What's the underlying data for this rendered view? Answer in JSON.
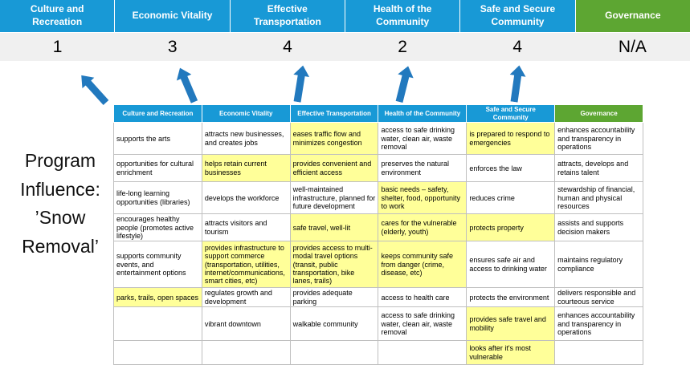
{
  "program_label": "Program Influence: ’Snow Removal’",
  "banner": {
    "columns": [
      {
        "label": "Culture and Recreation",
        "score": "1",
        "accent": "blue"
      },
      {
        "label": "Economic Vitality",
        "score": "3",
        "accent": "blue"
      },
      {
        "label": "Effective Transportation",
        "score": "4",
        "accent": "blue"
      },
      {
        "label": "Health of the Community",
        "score": "2",
        "accent": "blue"
      },
      {
        "label": "Safe and Secure Community",
        "score": "4",
        "accent": "blue"
      },
      {
        "label": "Governance",
        "score": "N/A",
        "accent": "green"
      }
    ]
  },
  "matrix": {
    "headers": [
      "Culture and Recreation",
      "Economic Vitality",
      "Effective Transportation",
      "Health of the Community",
      "Safe and Secure Community",
      "Governance"
    ],
    "rows": [
      [
        {
          "text": "supports the arts",
          "highlight": false
        },
        {
          "text": "attracts new businesses, and creates jobs",
          "highlight": false
        },
        {
          "text": "eases traffic flow and minimizes congestion",
          "highlight": true
        },
        {
          "text": "access to safe drinking water, clean air, waste removal",
          "highlight": false
        },
        {
          "text": "is prepared to respond to emergencies",
          "highlight": true
        },
        {
          "text": "enhances accountability and transparency in operations",
          "highlight": false
        }
      ],
      [
        {
          "text": "opportunities for cultural enrichment",
          "highlight": false
        },
        {
          "text": "helps retain current businesses",
          "highlight": true
        },
        {
          "text": "provides convenient and efficient access",
          "highlight": true
        },
        {
          "text": "preserves the natural environment",
          "highlight": false
        },
        {
          "text": "enforces the law",
          "highlight": false
        },
        {
          "text": "attracts, develops and retains talent",
          "highlight": false
        }
      ],
      [
        {
          "text": "life-long learning opportunities (libraries)",
          "highlight": false
        },
        {
          "text": "develops the workforce",
          "highlight": false
        },
        {
          "text": "well-maintained infrastructure, planned for future development",
          "highlight": false
        },
        {
          "text": "basic needs – safety, shelter, food, opportunity to work",
          "highlight": true
        },
        {
          "text": "reduces crime",
          "highlight": false
        },
        {
          "text": "stewardship of financial, human and physical resources",
          "highlight": false
        }
      ],
      [
        {
          "text": "encourages healthy people (promotes active lifestyle)",
          "highlight": false
        },
        {
          "text": "attracts visitors and tourism",
          "highlight": false
        },
        {
          "text": "safe travel, well-lit",
          "highlight": true
        },
        {
          "text": "cares for the vulnerable (elderly, youth)",
          "highlight": true
        },
        {
          "text": "protects property",
          "highlight": true
        },
        {
          "text": "assists and supports decision makers",
          "highlight": false
        }
      ],
      [
        {
          "text": "supports community events, and entertainment options",
          "highlight": false
        },
        {
          "text": "provides infrastructure to support commerce (transportation, utilities, internet/communications, smart cities, etc)",
          "highlight": true
        },
        {
          "text": "provides access to multi-modal travel options (transit, public transportation, bike lanes, trails)",
          "highlight": true
        },
        {
          "text": "keeps community safe from danger (crime, disease, etc)",
          "highlight": true
        },
        {
          "text": "ensures safe air and access to drinking water",
          "highlight": false
        },
        {
          "text": "maintains regulatory compliance",
          "highlight": false
        }
      ],
      [
        {
          "text": "parks, trails, open spaces",
          "highlight": true
        },
        {
          "text": "regulates growth and development",
          "highlight": false
        },
        {
          "text": "provides adequate parking",
          "highlight": false
        },
        {
          "text": "access to health care",
          "highlight": false
        },
        {
          "text": "protects the environment",
          "highlight": false
        },
        {
          "text": "delivers responsible and courteous service",
          "highlight": false
        }
      ],
      [
        {
          "text": "",
          "highlight": false
        },
        {
          "text": "vibrant downtown",
          "highlight": false
        },
        {
          "text": "walkable community",
          "highlight": false
        },
        {
          "text": "access to safe drinking water, clean air, waste removal",
          "highlight": false
        },
        {
          "text": "provides safe travel and mobility",
          "highlight": true
        },
        {
          "text": "enhances accountability and transparency in operations",
          "highlight": false
        }
      ],
      [
        {
          "text": "",
          "highlight": false
        },
        {
          "text": "",
          "highlight": false
        },
        {
          "text": "",
          "highlight": false
        },
        {
          "text": "",
          "highlight": false
        },
        {
          "text": "looks after it's most vulnerable",
          "highlight": true
        },
        {
          "text": "",
          "highlight": false
        }
      ]
    ]
  },
  "colors": {
    "header_blue": "#1899D6",
    "header_green": "#5DA632",
    "highlight_yellow": "#FFFF99",
    "arrow_blue": "#2279BE",
    "score_band_gray": "#F0F0F0"
  }
}
